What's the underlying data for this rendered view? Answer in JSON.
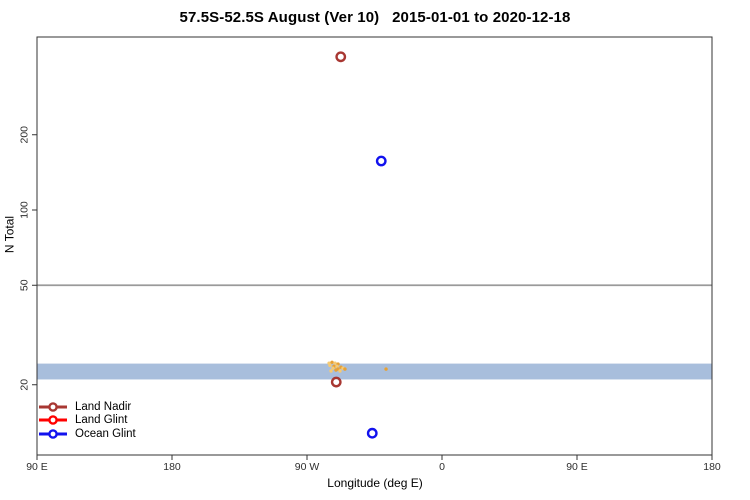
{
  "chart_data": {
    "type": "scatter",
    "title": "57.5S-52.5S August (Ver 10)   2015-01-01 to 2020-12-18",
    "xlabel": "Longitude (deg E)",
    "ylabel": "N Total",
    "x_axis": {
      "min": 90,
      "max": 540,
      "ticks": [
        {
          "value": 90,
          "label": "90 E"
        },
        {
          "value": 180,
          "label": "180"
        },
        {
          "value": 270,
          "label": "90 W"
        },
        {
          "value": 360,
          "label": "0"
        },
        {
          "value": 450,
          "label": "90 E"
        },
        {
          "value": 540,
          "label": "180"
        }
      ]
    },
    "y_axis": {
      "scale": "log",
      "min": 10.5,
      "max": 492,
      "ticks": [
        {
          "value": 20,
          "label": "20"
        },
        {
          "value": 50,
          "label": "50"
        },
        {
          "value": 100,
          "label": "100"
        },
        {
          "value": 200,
          "label": "200"
        }
      ]
    },
    "reference_line": {
      "n": 50,
      "color": "#9a9a9a"
    },
    "band": {
      "n_from": 21,
      "n_to": 24.3,
      "color": "#a8bedc"
    },
    "series": [
      {
        "name": "Land Nadir",
        "color": "#a83732",
        "marker": "open-circle",
        "points": [
          {
            "lon": 292.5,
            "n": 410
          },
          {
            "lon": 289.5,
            "n": 20.5
          }
        ]
      },
      {
        "name": "Land Glint",
        "color": "#ff0000",
        "marker": "open-circle",
        "points": []
      },
      {
        "name": "Ocean Glint",
        "color": "#1212ee",
        "marker": "open-circle",
        "points": [
          {
            "lon": 319.5,
            "n": 157
          },
          {
            "lon": 313.5,
            "n": 12.8
          }
        ]
      },
      {
        "name": "unlabeled gold points",
        "marker": "small-dot",
        "color": "#eaa83e",
        "colors": [
          "#f5ca74",
          "#e8a134"
        ],
        "points": [
          {
            "lon": 284.7,
            "n": 24.4
          },
          {
            "lon": 286.7,
            "n": 24.6
          },
          {
            "lon": 288.7,
            "n": 24.4
          },
          {
            "lon": 290.7,
            "n": 24.2
          },
          {
            "lon": 285.3,
            "n": 23.9
          },
          {
            "lon": 288.0,
            "n": 23.7
          },
          {
            "lon": 290.0,
            "n": 23.7
          },
          {
            "lon": 292.7,
            "n": 23.5
          },
          {
            "lon": 287.3,
            "n": 23.3
          },
          {
            "lon": 290.7,
            "n": 23.1
          },
          {
            "lon": 294.0,
            "n": 23.3
          },
          {
            "lon": 289.3,
            "n": 22.9
          },
          {
            "lon": 292.0,
            "n": 22.7
          },
          {
            "lon": 295.3,
            "n": 23.1
          },
          {
            "lon": 286.0,
            "n": 22.7
          },
          {
            "lon": 322.7,
            "n": 23.1
          }
        ]
      }
    ],
    "legend": {
      "position": "bottom-left",
      "entries": [
        {
          "label": "Land Nadir",
          "color": "#a83732"
        },
        {
          "label": "Land Glint",
          "color": "#ff0000"
        },
        {
          "label": "Ocean Glint",
          "color": "#1212ee"
        }
      ]
    }
  }
}
